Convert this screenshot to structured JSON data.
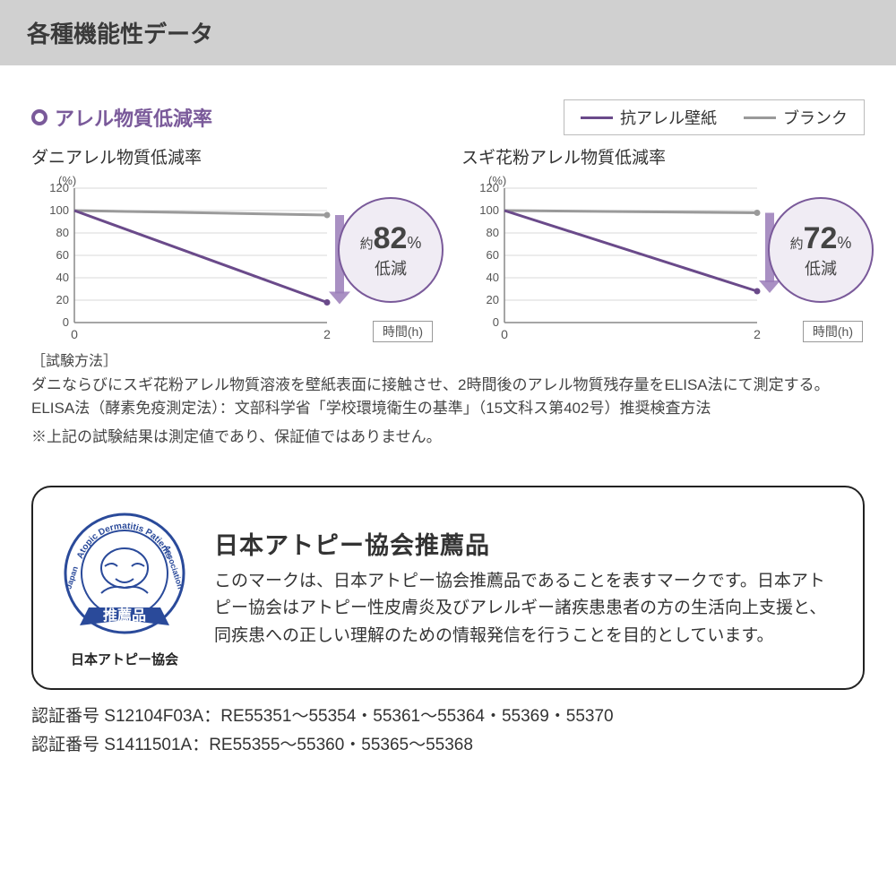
{
  "header": {
    "title": "各種機能性データ"
  },
  "section": {
    "title": "アレル物質低減率",
    "bullet_color": "#7a5a9a"
  },
  "legend": {
    "items": [
      {
        "label": "抗アレル壁紙",
        "color": "#6a4a8a"
      },
      {
        "label": "ブランク",
        "color": "#9a9a9a"
      }
    ],
    "border_color": "#bbbbbb"
  },
  "charts": {
    "axis_unit": "(%)",
    "x_axis_label": "時間(h)",
    "ylim": [
      0,
      120
    ],
    "yticks": [
      0,
      20,
      40,
      60,
      80,
      100,
      120
    ],
    "xticks": [
      0,
      2
    ],
    "grid_color": "#d8d8d8",
    "axis_color": "#888888",
    "arrow_color": "#9a7cb8",
    "items": [
      {
        "subtitle": "ダニアレル物質低減率",
        "series": [
          {
            "name": "blank",
            "color": "#9a9a9a",
            "x": [
              0,
              2
            ],
            "y": [
              100,
              96
            ]
          },
          {
            "name": "active",
            "color": "#6a4a8a",
            "x": [
              0,
              2
            ],
            "y": [
              100,
              18
            ]
          }
        ],
        "badge": {
          "prefix": "約",
          "value": "82",
          "suffix": "%",
          "sub": "低減"
        }
      },
      {
        "subtitle": "スギ花粉アレル物質低減率",
        "series": [
          {
            "name": "blank",
            "color": "#9a9a9a",
            "x": [
              0,
              2
            ],
            "y": [
              100,
              98
            ]
          },
          {
            "name": "active",
            "color": "#6a4a8a",
            "x": [
              0,
              2
            ],
            "y": [
              100,
              28
            ]
          }
        ],
        "badge": {
          "prefix": "約",
          "value": "72",
          "suffix": "%",
          "sub": "低減"
        }
      }
    ]
  },
  "notes": {
    "heading": "［試験方法］",
    "line1": "ダニならびにスギ花粉アレル物質溶液を壁紙表面に接触させ、2時間後のアレル物質残存量をELISA法にて測定する。",
    "line2": "ELISA法（酵素免疫測定法）：文部科学省「学校環境衛生の基準」（15文科ス第402号）推奨検査方法",
    "disclaimer": "※上記の試験結果は測定値であり、保証値ではありません。"
  },
  "certification": {
    "logo": {
      "ring_text_top": "Atopic Dermatitis Patients",
      "ring_text_left": "Japan",
      "ring_text_right": "Association",
      "ribbon_text": "推薦品",
      "ring_color": "#2a4a9a",
      "caption": "日本アトピー協会"
    },
    "title": "日本アトピー協会推薦品",
    "body": "このマークは、日本アトピー協会推薦品であることを表すマークです。日本アトピー協会はアトピー性皮膚炎及びアレルギー諸疾患患者の方の生活向上支援と、同疾患への正しい理解のための情報発信を行うことを目的としています。"
  },
  "cert_numbers": {
    "label": "認証番号",
    "rows": [
      "S12104F03A：RE55351～55354・55361～55364・55369・55370",
      "S1411501A：RE55355～55360・55365～55368"
    ]
  }
}
